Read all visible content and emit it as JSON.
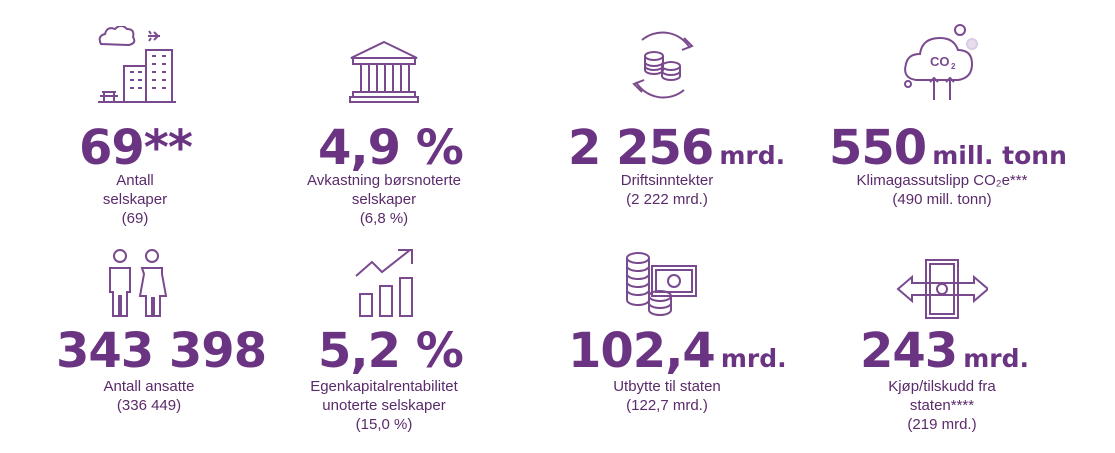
{
  "colors": {
    "accent": "#6b3483",
    "icon_stroke": "#7a4a8e",
    "icon_light": "#cbb8d6"
  },
  "stats": [
    {
      "icon": "city-buildings-icon",
      "value": "69**",
      "unit": "",
      "label_lines": [
        "Antall",
        "selskaper",
        "(69)"
      ]
    },
    {
      "icon": "bank-building-icon",
      "value": "4,9 %",
      "unit": "",
      "label_lines": [
        "Avkastning børsnoterte",
        "selskaper",
        "(6,8 %)"
      ]
    },
    {
      "icon": "coins-cycle-icon",
      "value": "2 256",
      "unit": "mrd.",
      "label_lines": [
        "Driftsinntekter",
        "(2 222 mrd.)"
      ]
    },
    {
      "icon": "co2-cloud-icon",
      "value": "550",
      "unit": "mill. tonn",
      "label_lines": [
        "Klimagassutslipp CO₂e***",
        "(490 mill. tonn)"
      ]
    },
    {
      "icon": "people-icon",
      "value": "343 398",
      "unit": "",
      "label_lines": [
        "Antall ansatte",
        "(336 449)"
      ]
    },
    {
      "icon": "growth-chart-icon",
      "value": "5,2 %",
      "unit": "",
      "label_lines": [
        "Egenkapitalrentabilitet",
        "unoterte selskaper",
        "(15,0 %)"
      ]
    },
    {
      "icon": "coins-banknote-icon",
      "value": "102,4",
      "unit": "mrd.",
      "label_lines": [
        "Utbytte til staten",
        "(122,7 mrd.)"
      ]
    },
    {
      "icon": "money-exchange-icon",
      "value": "243",
      "unit": "mrd.",
      "label_lines": [
        "Kjøp/tilskudd fra",
        "staten****",
        "(219 mrd.)"
      ]
    }
  ]
}
